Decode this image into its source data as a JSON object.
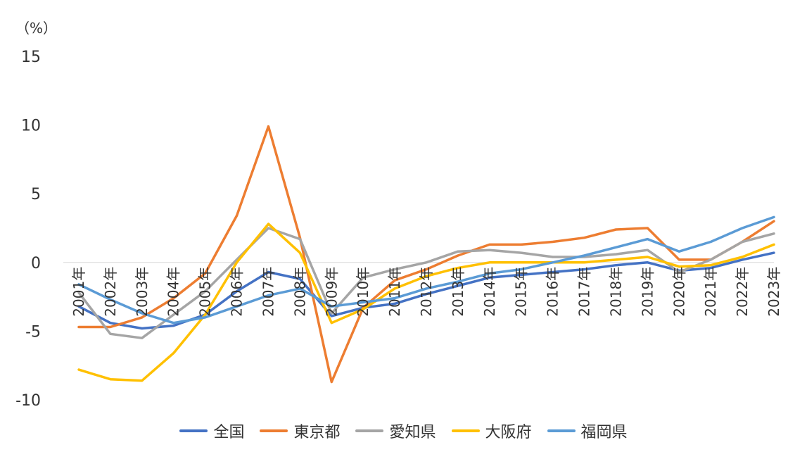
{
  "chart_data": {
    "type": "line",
    "unit_label": "（%）",
    "categories": [
      "2001年",
      "2002年",
      "2003年",
      "2004年",
      "2005年",
      "2006年",
      "2007年",
      "2008年",
      "2009年",
      "2010年",
      "2011年",
      "2012年",
      "2013年",
      "2014年",
      "2015年",
      "2016年",
      "2017年",
      "2018年",
      "2019年",
      "2020年",
      "2021年",
      "2022年",
      "2023年"
    ],
    "ylim": [
      -10,
      15
    ],
    "yticks": [
      15,
      10,
      5,
      0,
      -5,
      -10
    ],
    "grid": false,
    "legend_position": "bottom",
    "series": [
      {
        "name": "全国",
        "color": "#4472C4",
        "values": [
          -3.2,
          -4.4,
          -4.8,
          -4.6,
          -3.8,
          -2.1,
          -0.7,
          -1.2,
          -3.9,
          -3.3,
          -3.0,
          -2.3,
          -1.7,
          -1.1,
          -0.9,
          -0.7,
          -0.5,
          -0.2,
          0.0,
          -0.6,
          -0.4,
          0.2,
          0.7
        ]
      },
      {
        "name": "東京都",
        "color": "#ED7D31",
        "values": [
          -4.7,
          -4.7,
          -4.0,
          -2.6,
          -0.8,
          3.4,
          9.9,
          1.8,
          -8.7,
          -3.3,
          -1.3,
          -0.5,
          0.5,
          1.3,
          1.3,
          1.5,
          1.8,
          2.4,
          2.5,
          0.2,
          0.2,
          1.5,
          3.0
        ]
      },
      {
        "name": "愛知県",
        "color": "#A5A5A5",
        "values": [
          -2.2,
          -5.2,
          -5.5,
          -3.8,
          -2.1,
          0.2,
          2.5,
          1.7,
          -3.7,
          -1.1,
          -0.5,
          0.0,
          0.8,
          0.9,
          0.7,
          0.4,
          0.4,
          0.6,
          0.9,
          -0.7,
          0.2,
          1.5,
          2.1
        ]
      },
      {
        "name": "大阪府",
        "color": "#FFC000",
        "values": [
          -7.8,
          -8.5,
          -8.6,
          -6.6,
          -3.8,
          0.0,
          2.8,
          0.7,
          -4.4,
          -3.4,
          -1.9,
          -1.0,
          -0.4,
          0.0,
          0.0,
          0.0,
          0.0,
          0.2,
          0.4,
          -0.3,
          -0.2,
          0.4,
          1.3
        ]
      },
      {
        "name": "福岡県",
        "color": "#5B9BD5",
        "values": [
          -1.6,
          -2.7,
          -3.7,
          -4.4,
          -4.0,
          -3.2,
          -2.4,
          -1.9,
          -3.2,
          -2.9,
          -2.6,
          -1.9,
          -1.4,
          -0.8,
          -0.5,
          0.0,
          0.5,
          1.1,
          1.7,
          0.8,
          1.5,
          2.5,
          3.3
        ]
      }
    ]
  }
}
